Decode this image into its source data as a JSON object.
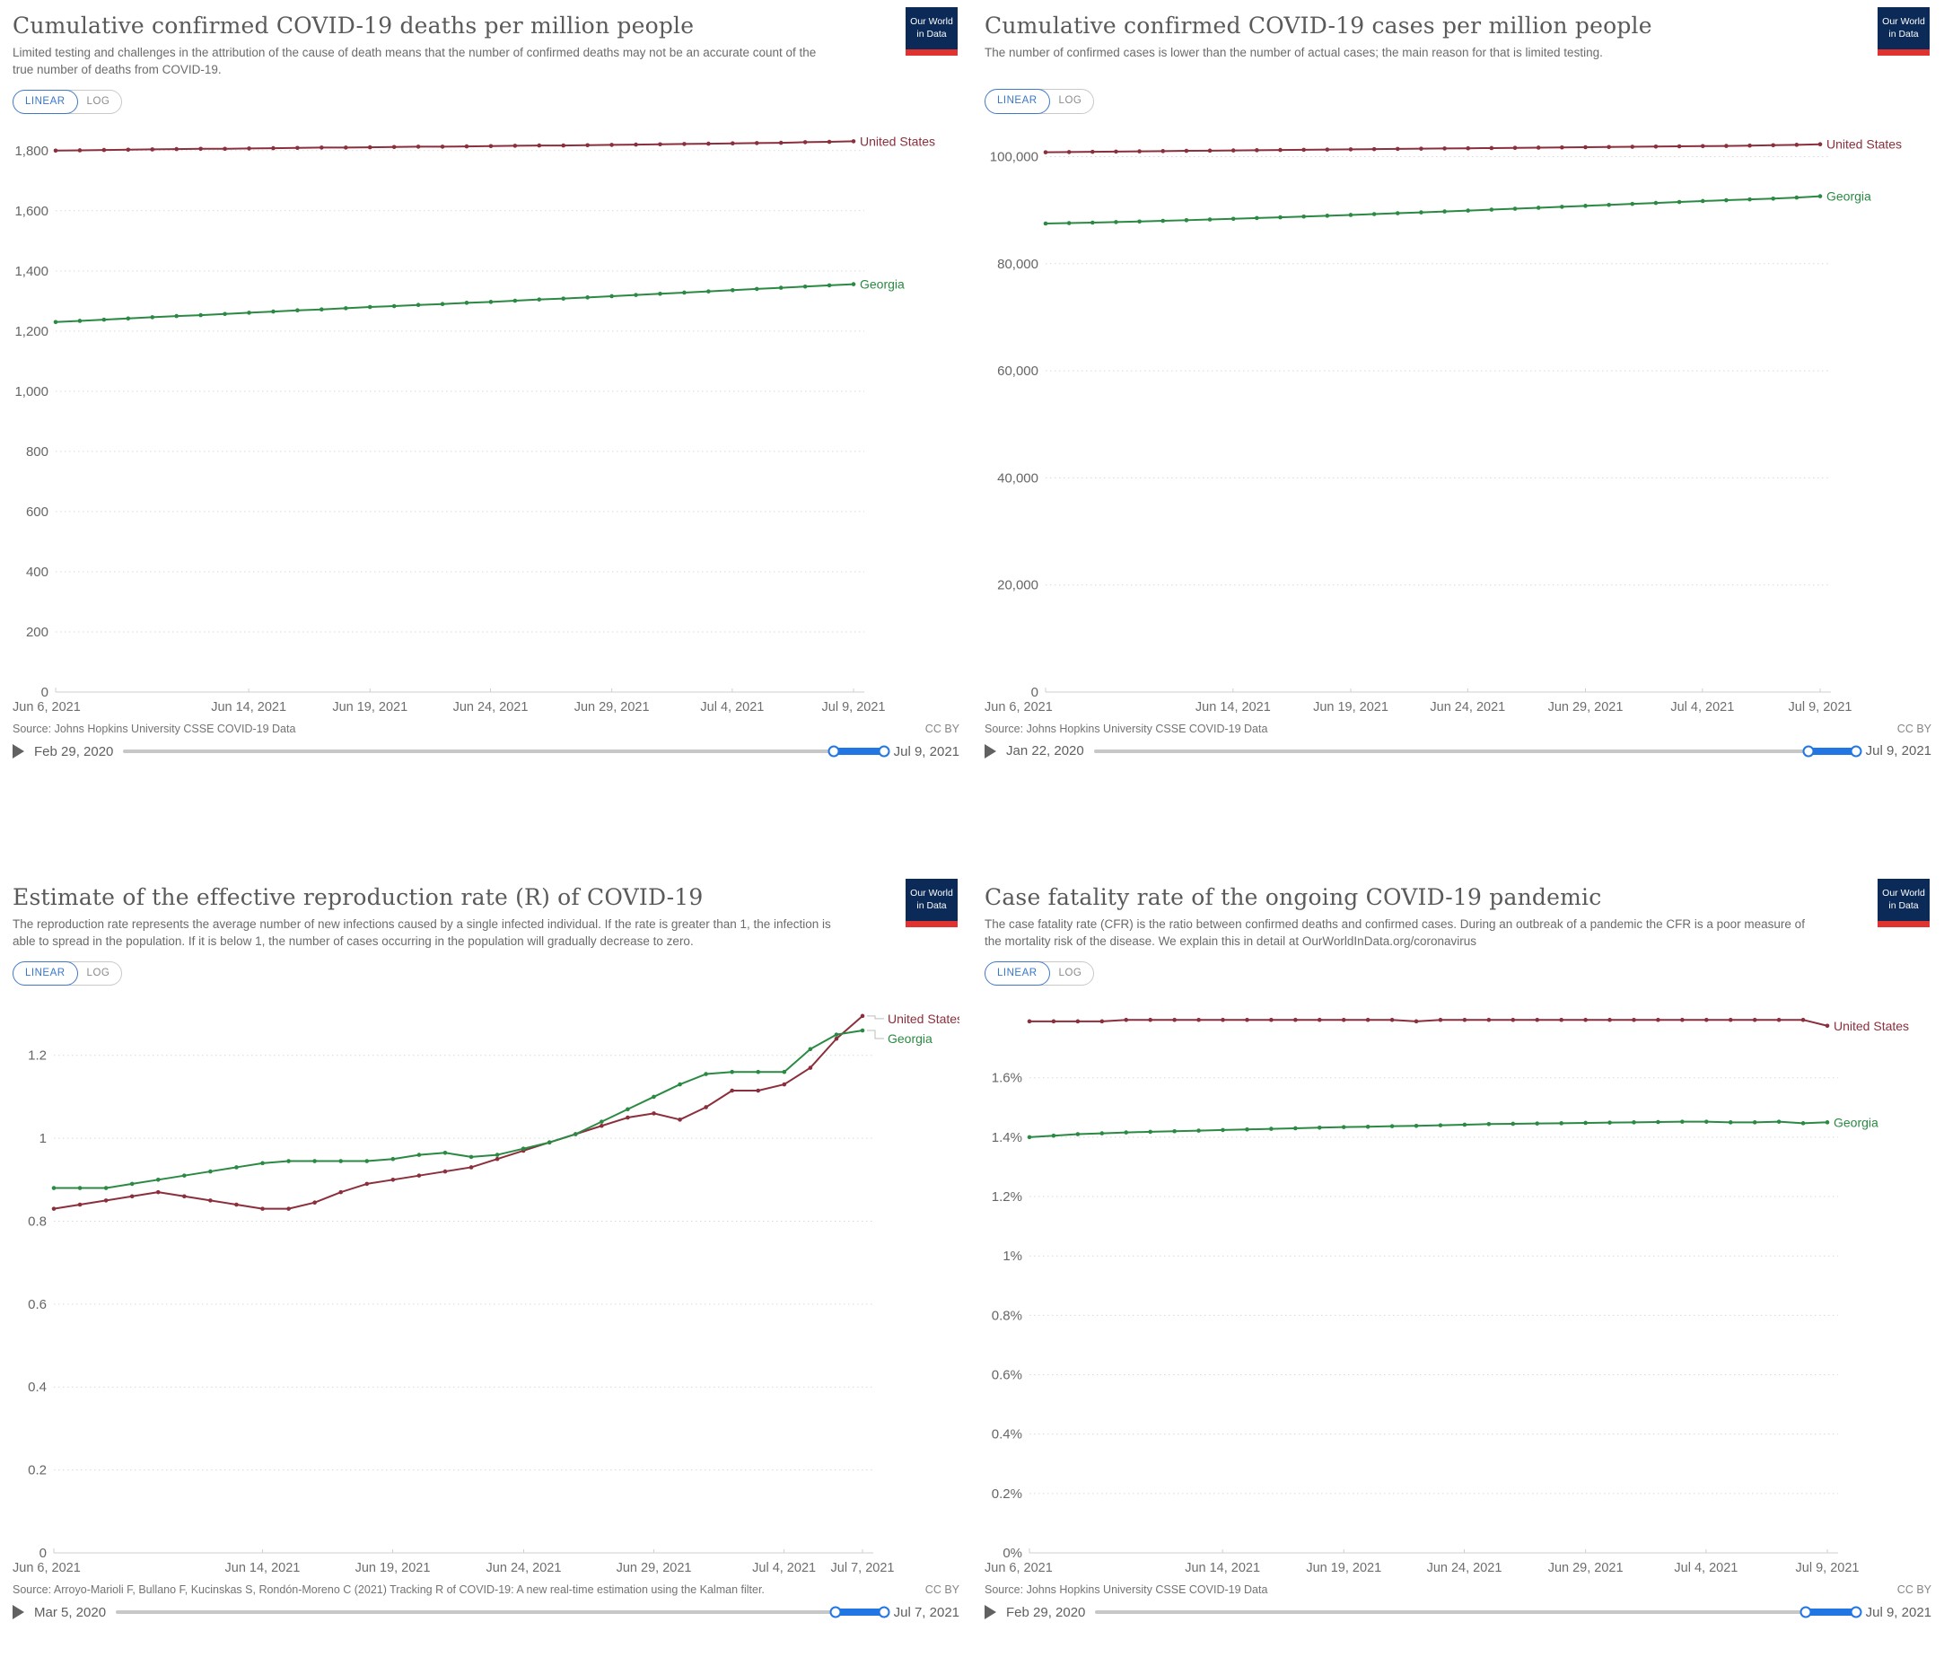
{
  "ui": {
    "logo": {
      "line1": "Our World",
      "line2": "in Data"
    },
    "scale_toggle": {
      "linear": "LINEAR",
      "log": "LOG"
    },
    "source_prefix": "Source:",
    "license": "CC BY"
  },
  "colors": {
    "united_states": "#8b2f3c",
    "georgia": "#2a8a43",
    "accent_blue": "#3778c8",
    "slider_blue": "#2176e3"
  },
  "chart_data": [
    {
      "type": "line",
      "title": "Cumulative confirmed COVID-19 deaths per million people",
      "subtitle": "Limited testing and challenges in the attribution of the cause of death means that the number of confirmed deaths may not be an accurate count of the true number of deaths from COVID-19.",
      "source": "Johns Hopkins University CSSE COVID-19 Data",
      "ylim": [
        0,
        1862
      ],
      "grid": true,
      "legend_position": "right-of-line",
      "labels_stacked": false,
      "margin_left": 48,
      "margin_right": 118,
      "y_ticks": [
        {
          "v": 0,
          "label": "0"
        },
        {
          "v": 200,
          "label": "200"
        },
        {
          "v": 400,
          "label": "400"
        },
        {
          "v": 600,
          "label": "600"
        },
        {
          "v": 800,
          "label": "800"
        },
        {
          "v": 1000,
          "label": "1,000"
        },
        {
          "v": 1200,
          "label": "1,200"
        },
        {
          "v": 1400,
          "label": "1,400"
        },
        {
          "v": 1600,
          "label": "1,600"
        },
        {
          "v": 1800,
          "label": "1,800"
        }
      ],
      "x_ticks": [
        {
          "f": 0,
          "label": "Jun 6, 2021"
        },
        {
          "f": 0.242,
          "label": "Jun 14, 2021"
        },
        {
          "f": 0.394,
          "label": "Jun 19, 2021"
        },
        {
          "f": 0.545,
          "label": "Jun 24, 2021"
        },
        {
          "f": 0.697,
          "label": "Jun 29, 2021"
        },
        {
          "f": 0.848,
          "label": "Jul 4, 2021"
        },
        {
          "f": 1,
          "label": "Jul 9, 2021"
        }
      ],
      "series": [
        {
          "name": "United States",
          "color": "#8b2f3c",
          "values": [
            1800,
            1801,
            1802,
            1803,
            1804,
            1805,
            1806,
            1806,
            1807,
            1808,
            1809,
            1810,
            1810,
            1811,
            1812,
            1813,
            1813,
            1814,
            1815,
            1816,
            1817,
            1817,
            1818,
            1819,
            1820,
            1821,
            1822,
            1823,
            1824,
            1825,
            1826,
            1828,
            1829,
            1831
          ]
        },
        {
          "name": "Georgia",
          "color": "#2a8a43",
          "values": [
            1230,
            1234,
            1238,
            1242,
            1246,
            1250,
            1253,
            1257,
            1261,
            1265,
            1269,
            1272,
            1276,
            1280,
            1283,
            1287,
            1290,
            1294,
            1297,
            1301,
            1305,
            1308,
            1312,
            1316,
            1320,
            1324,
            1328,
            1332,
            1336,
            1340,
            1344,
            1348,
            1352,
            1356
          ]
        }
      ],
      "timeline": {
        "start_label": "Feb 29, 2020",
        "end_label": "Jul 9, 2021",
        "selection_start_pct": 93.4
      }
    },
    {
      "type": "line",
      "title": "Cumulative confirmed COVID-19 cases per million people",
      "subtitle": "The number of confirmed cases is lower than the number of actual cases; the main reason for that is limited testing.",
      "source": "Johns Hopkins University CSSE COVID-19 Data",
      "ylim": [
        0,
        104600
      ],
      "grid": true,
      "legend_position": "right-of-line",
      "labels_stacked": false,
      "margin_left": 68,
      "margin_right": 124,
      "y_ticks": [
        {
          "v": 0,
          "label": "0"
        },
        {
          "v": 20000,
          "label": "20,000"
        },
        {
          "v": 40000,
          "label": "40,000"
        },
        {
          "v": 60000,
          "label": "60,000"
        },
        {
          "v": 80000,
          "label": "80,000"
        },
        {
          "v": 100000,
          "label": "100,000"
        }
      ],
      "x_ticks": [
        {
          "f": 0,
          "label": "Jun 6, 2021"
        },
        {
          "f": 0.242,
          "label": "Jun 14, 2021"
        },
        {
          "f": 0.394,
          "label": "Jun 19, 2021"
        },
        {
          "f": 0.545,
          "label": "Jun 24, 2021"
        },
        {
          "f": 0.697,
          "label": "Jun 29, 2021"
        },
        {
          "f": 0.848,
          "label": "Jul 4, 2021"
        },
        {
          "f": 1,
          "label": "Jul 9, 2021"
        }
      ],
      "series": [
        {
          "name": "United States",
          "color": "#8b2f3c",
          "values": [
            100800,
            100845,
            100890,
            100935,
            100980,
            101025,
            101070,
            101110,
            101150,
            101190,
            101230,
            101270,
            101310,
            101350,
            101390,
            101430,
            101470,
            101510,
            101550,
            101590,
            101630,
            101670,
            101710,
            101750,
            101790,
            101830,
            101870,
            101910,
            101950,
            101990,
            102050,
            102120,
            102200,
            102300
          ]
        },
        {
          "name": "Georgia",
          "color": "#2a8a43",
          "values": [
            87500,
            87580,
            87670,
            87770,
            87880,
            88000,
            88120,
            88250,
            88380,
            88520,
            88660,
            88800,
            88950,
            89100,
            89260,
            89420,
            89580,
            89750,
            89920,
            90090,
            90260,
            90440,
            90620,
            90800,
            90980,
            91160,
            91340,
            91520,
            91700,
            91850,
            92000,
            92150,
            92350,
            92600
          ]
        }
      ],
      "timeline": {
        "start_label": "Jan 22, 2020",
        "end_label": "Jul 9, 2021",
        "selection_start_pct": 93.8
      }
    },
    {
      "type": "line",
      "title": "Estimate of the effective reproduction rate (R) of COVID-19",
      "subtitle": "The reproduction rate represents the average number of new infections caused by a single infected individual. If the rate is greater than 1, the infection is able to spread in the population. If it is below 1, the number of cases occurring in the population will gradually decrease to zero.",
      "source": "Arroyo-Marioli F, Bullano F, Kucinskas S, Rondón-Moreno C (2021) Tracking R of COVID-19: A new real-time estimation using the Kalman filter.",
      "ylim": [
        0,
        1.325
      ],
      "grid": true,
      "legend_position": "right-of-line",
      "labels_stacked": true,
      "margin_left": 46,
      "margin_right": 108,
      "y_ticks": [
        {
          "v": 0,
          "label": "0"
        },
        {
          "v": 0.2,
          "label": "0.2"
        },
        {
          "v": 0.4,
          "label": "0.4"
        },
        {
          "v": 0.6,
          "label": "0.6"
        },
        {
          "v": 0.8,
          "label": "0.8"
        },
        {
          "v": 1,
          "label": "1"
        },
        {
          "v": 1.2,
          "label": "1.2"
        }
      ],
      "x_ticks": [
        {
          "f": 0,
          "label": "Jun 6, 2021"
        },
        {
          "f": 0.258,
          "label": "Jun 14, 2021"
        },
        {
          "f": 0.419,
          "label": "Jun 19, 2021"
        },
        {
          "f": 0.581,
          "label": "Jun 24, 2021"
        },
        {
          "f": 0.742,
          "label": "Jun 29, 2021"
        },
        {
          "f": 0.903,
          "label": "Jul 4, 2021"
        },
        {
          "f": 1,
          "label": "Jul 7, 2021"
        }
      ],
      "series": [
        {
          "name": "United States",
          "color": "#8b2f3c",
          "values": [
            0.83,
            0.84,
            0.85,
            0.86,
            0.87,
            0.86,
            0.85,
            0.84,
            0.83,
            0.83,
            0.845,
            0.87,
            0.89,
            0.9,
            0.91,
            0.92,
            0.93,
            0.95,
            0.97,
            0.99,
            1.01,
            1.03,
            1.05,
            1.06,
            1.045,
            1.075,
            1.115,
            1.115,
            1.13,
            1.17,
            1.24,
            1.295
          ]
        },
        {
          "name": "Georgia",
          "color": "#2a8a43",
          "values": [
            0.88,
            0.88,
            0.88,
            0.89,
            0.9,
            0.91,
            0.92,
            0.93,
            0.94,
            0.945,
            0.945,
            0.945,
            0.945,
            0.95,
            0.96,
            0.965,
            0.955,
            0.96,
            0.975,
            0.99,
            1.01,
            1.04,
            1.07,
            1.1,
            1.13,
            1.155,
            1.16,
            1.16,
            1.16,
            1.215,
            1.25,
            1.26
          ]
        }
      ],
      "timeline": {
        "start_label": "Mar 5, 2020",
        "end_label": "Jul 7, 2021",
        "selection_start_pct": 93.7
      }
    },
    {
      "type": "line",
      "title": "Case fatality rate of the ongoing COVID-19 pandemic",
      "subtitle": "The case fatality rate (CFR) is the ratio between confirmed deaths and confirmed cases. During an outbreak of a pandemic the CFR is a poor measure of the mortality risk of the disease. We explain this in detail at OurWorldInData.org/coronavirus",
      "source": "Johns Hopkins University CSSE COVID-19 Data",
      "ylim": [
        0,
        1.85
      ],
      "grid": true,
      "legend_position": "right-of-line",
      "labels_stacked": false,
      "margin_left": 50,
      "margin_right": 116,
      "y_ticks": [
        {
          "v": 0,
          "label": "0%"
        },
        {
          "v": 0.2,
          "label": "0.2%"
        },
        {
          "v": 0.4,
          "label": "0.4%"
        },
        {
          "v": 0.6,
          "label": "0.6%"
        },
        {
          "v": 0.8,
          "label": "0.8%"
        },
        {
          "v": 1,
          "label": "1%"
        },
        {
          "v": 1.2,
          "label": "1.2%"
        },
        {
          "v": 1.4,
          "label": "1.4%"
        },
        {
          "v": 1.6,
          "label": "1.6%"
        }
      ],
      "x_ticks": [
        {
          "f": 0,
          "label": "Jun 6, 2021"
        },
        {
          "f": 0.242,
          "label": "Jun 14, 2021"
        },
        {
          "f": 0.394,
          "label": "Jun 19, 2021"
        },
        {
          "f": 0.545,
          "label": "Jun 24, 2021"
        },
        {
          "f": 0.697,
          "label": "Jun 29, 2021"
        },
        {
          "f": 0.848,
          "label": "Jul 4, 2021"
        },
        {
          "f": 1,
          "label": "Jul 9, 2021"
        }
      ],
      "series": [
        {
          "name": "United States",
          "color": "#8b2f3c",
          "values": [
            1.79,
            1.79,
            1.79,
            1.79,
            1.795,
            1.795,
            1.795,
            1.795,
            1.795,
            1.795,
            1.795,
            1.795,
            1.795,
            1.795,
            1.795,
            1.795,
            1.79,
            1.795,
            1.795,
            1.795,
            1.795,
            1.795,
            1.795,
            1.795,
            1.795,
            1.795,
            1.795,
            1.795,
            1.795,
            1.795,
            1.795,
            1.795,
            1.795,
            1.775
          ]
        },
        {
          "name": "Georgia",
          "color": "#2a8a43",
          "values": [
            1.4,
            1.405,
            1.41,
            1.413,
            1.416,
            1.418,
            1.42,
            1.422,
            1.424,
            1.426,
            1.428,
            1.43,
            1.432,
            1.434,
            1.435,
            1.437,
            1.438,
            1.44,
            1.442,
            1.444,
            1.445,
            1.446,
            1.447,
            1.448,
            1.449,
            1.45,
            1.451,
            1.452,
            1.452,
            1.45,
            1.45,
            1.452,
            1.447,
            1.45
          ]
        }
      ],
      "timeline": {
        "start_label": "Feb 29, 2020",
        "end_label": "Jul 9, 2021",
        "selection_start_pct": 93.4
      }
    }
  ]
}
